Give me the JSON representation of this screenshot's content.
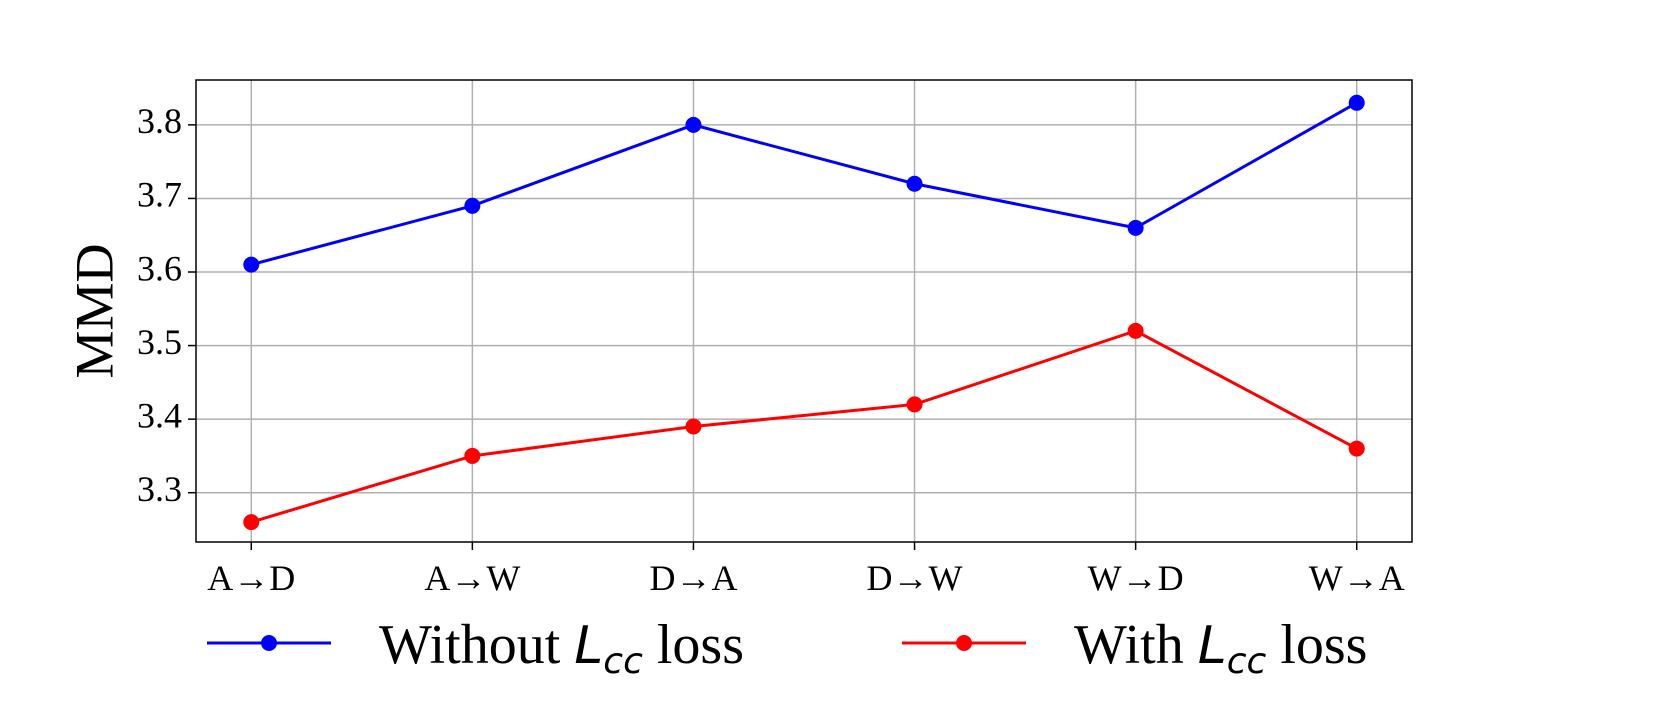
{
  "chart_data": {
    "type": "line",
    "title": "",
    "xlabel": "",
    "ylabel": "MMD",
    "categories": [
      "A→D",
      "A→W",
      "D→A",
      "D→W",
      "W→D",
      "W→A"
    ],
    "ylim": [
      3.233,
      3.861
    ],
    "yticks": [
      "3.3",
      "3.4",
      "3.5",
      "3.6",
      "3.7",
      "3.8"
    ],
    "grid": true,
    "legend_placement": "bottom",
    "series": [
      {
        "name": "Without L_cc loss",
        "legend": {
          "pre": "Without ",
          "sym": "L",
          "sub": "cc",
          "post": " loss"
        },
        "color": "#0000ff",
        "values": [
          3.61,
          3.69,
          3.8,
          3.72,
          3.66,
          3.83
        ]
      },
      {
        "name": "With L_cc loss",
        "legend": {
          "pre": "With ",
          "sym": "L",
          "sub": "cc",
          "post": " loss"
        },
        "color": "#ff0000",
        "values": [
          3.26,
          3.35,
          3.39,
          3.42,
          3.52,
          3.36
        ]
      }
    ]
  }
}
